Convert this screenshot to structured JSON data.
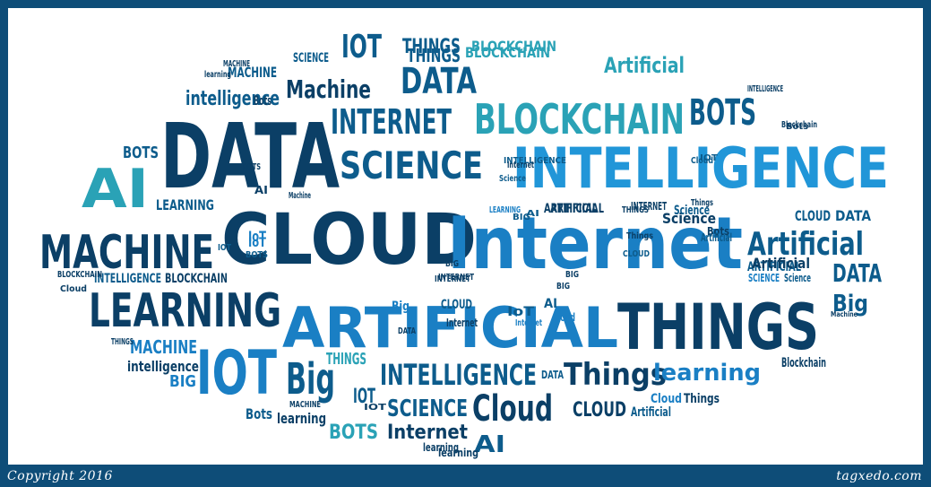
{
  "colors": {
    "frame": "#0e4d78",
    "background": "#ffffff",
    "palette": [
      "#0b3f66",
      "#0d5c8c",
      "#1a7fc4",
      "#2196d8",
      "#2aa2b6",
      "#0f6d8a"
    ]
  },
  "footer": {
    "copyright": "Copyright 2016",
    "site": "tagxedo.com"
  },
  "words": [
    {
      "text": "DATA"
    },
    {
      "text": "CLOUD"
    },
    {
      "text": "Internet"
    },
    {
      "text": "INTELLIGENCE"
    },
    {
      "text": "ARTIFICIAL"
    },
    {
      "text": "THINGS"
    },
    {
      "text": "LEARNING"
    },
    {
      "text": "MACHINE"
    },
    {
      "text": "AI"
    },
    {
      "text": "IOT"
    },
    {
      "text": "BLOCKCHAIN"
    },
    {
      "text": "BOTS"
    },
    {
      "text": "INTERNET"
    },
    {
      "text": "SCIENCE"
    },
    {
      "text": "Machine"
    },
    {
      "text": "DATA"
    },
    {
      "text": "Artificial"
    },
    {
      "text": "Cloud"
    },
    {
      "text": "Big"
    },
    {
      "text": "Things"
    },
    {
      "text": "INTELLIGENCE"
    },
    {
      "text": "IOT"
    },
    {
      "text": "THINGS"
    },
    {
      "text": "BLOCKCHAIN"
    },
    {
      "text": "Artificial"
    },
    {
      "text": "learning"
    },
    {
      "text": "SCIENCE"
    },
    {
      "text": "Internet"
    },
    {
      "text": "AI"
    },
    {
      "text": "BOTS"
    },
    {
      "text": "intelligence"
    },
    {
      "text": "MACHINE"
    },
    {
      "text": "DATA"
    },
    {
      "text": "Big"
    },
    {
      "text": "IOT"
    },
    {
      "text": "CLOUD"
    },
    {
      "text": "Science"
    },
    {
      "text": "LEARNING"
    },
    {
      "text": "BLOCKCHAIN"
    },
    {
      "text": "INTELLIGENCE"
    },
    {
      "text": "MACHINE"
    },
    {
      "text": "intelligence"
    },
    {
      "text": "BIG"
    },
    {
      "text": "THINGS"
    },
    {
      "text": "CLOUD"
    },
    {
      "text": "DATA"
    },
    {
      "text": "ARTIFICIAL"
    },
    {
      "text": "INTERNET"
    },
    {
      "text": "Bots"
    },
    {
      "text": "learning"
    },
    {
      "text": "BOTS"
    },
    {
      "text": "Blockchain"
    },
    {
      "text": "Cloud"
    },
    {
      "text": "Things"
    },
    {
      "text": "IoT"
    },
    {
      "text": "AI"
    },
    {
      "text": "BIG"
    },
    {
      "text": "CLOUD"
    },
    {
      "text": "Bots"
    },
    {
      "text": "Artificial"
    },
    {
      "text": "learning"
    },
    {
      "text": "ARTIFICIAL"
    },
    {
      "text": "SCIENCE"
    },
    {
      "text": "Science"
    },
    {
      "text": "BLOCKCHAIN"
    },
    {
      "text": "Cloud"
    },
    {
      "text": "INTELLIGENCE"
    },
    {
      "text": "Big"
    },
    {
      "text": "IoT"
    },
    {
      "text": "THINGS"
    },
    {
      "text": "MACHINE"
    },
    {
      "text": "BOTS"
    },
    {
      "text": "AI"
    },
    {
      "text": "INTERNET"
    },
    {
      "text": "DATA"
    },
    {
      "text": "learning"
    },
    {
      "text": "Blockchain"
    },
    {
      "text": "Machine"
    },
    {
      "text": "Bots"
    },
    {
      "text": "Things"
    },
    {
      "text": "Cloud"
    },
    {
      "text": "THINGS"
    },
    {
      "text": "Science"
    },
    {
      "text": "Internet"
    },
    {
      "text": "IOT"
    },
    {
      "text": "BIG"
    },
    {
      "text": "ARTIFICIAL"
    },
    {
      "text": "INTERNET"
    },
    {
      "text": "LEARNING"
    },
    {
      "text": "Machine"
    },
    {
      "text": "BLOCKCHAIN"
    },
    {
      "text": "IoT"
    },
    {
      "text": "BIG"
    },
    {
      "text": "CLOUD"
    },
    {
      "text": "Artificial"
    },
    {
      "text": "INTELLIGENCE"
    },
    {
      "text": "BOTS"
    },
    {
      "text": "MACHINE"
    },
    {
      "text": "DATA"
    },
    {
      "text": "SCIENCE"
    },
    {
      "text": "Internet"
    },
    {
      "text": "AI"
    },
    {
      "text": "IOT"
    },
    {
      "text": "BIG"
    },
    {
      "text": "Bots"
    },
    {
      "text": "Internet"
    },
    {
      "text": "Artificial"
    },
    {
      "text": "Cloud"
    },
    {
      "text": "Things"
    },
    {
      "text": "Science"
    },
    {
      "text": "learning"
    },
    {
      "text": "IOT"
    },
    {
      "text": "THINGS"
    }
  ]
}
